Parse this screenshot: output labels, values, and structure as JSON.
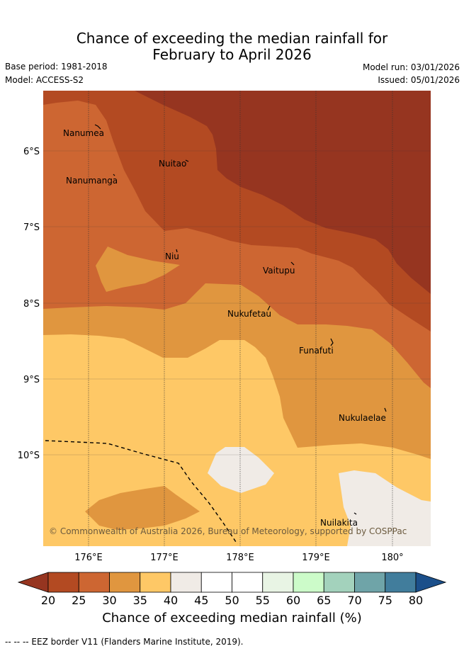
{
  "header": {
    "title_line1": "Chance of exceeding the median rainfall for",
    "title_line2": "February to April 2026",
    "base_period": "Base period: 1981-2018",
    "model": "Model: ACCESS-S2",
    "model_run": "Model run: 03/01/2026",
    "issued": "Issued: 05/01/2026"
  },
  "map": {
    "lon_labels": [
      "176°E",
      "177°E",
      "178°E",
      "179°E",
      "180°"
    ],
    "lat_labels": [
      "6°S",
      "7°S",
      "8°S",
      "9°S",
      "10°S"
    ],
    "islands": [
      {
        "name": "Nanumea"
      },
      {
        "name": "Nuitao"
      },
      {
        "name": "Nanumanga"
      },
      {
        "name": "Niu"
      },
      {
        "name": "Vaitupu"
      },
      {
        "name": "Nukufetau"
      },
      {
        "name": "Funafuti"
      },
      {
        "name": "Nukulaelae"
      },
      {
        "name": "Nuilakita"
      }
    ],
    "copyright": "© Commonwealth of Australia 2026, Bureau of Meteorology, supported by COSPPac"
  },
  "colorbar": {
    "labels": [
      "20",
      "25",
      "30",
      "35",
      "40",
      "45",
      "50",
      "55",
      "60",
      "65",
      "70",
      "75",
      "80"
    ],
    "colors": [
      "#b34a22",
      "#cd6632",
      "#e0963f",
      "#fec866",
      "#f0ebe6",
      "#ffffff",
      "#ffffff",
      "#e8f4e4",
      "#ccfbc9",
      "#a3d2bc",
      "#6fa4a8",
      "#417d9c",
      "#1b4f8a"
    ],
    "under_color": "#963520",
    "over_color": "#1b4f8a",
    "title": "Chance of exceeding median rainfall (%)"
  },
  "legend": {
    "eez_note": "-- -- -- EEZ border V11 (Flanders Marine Institute, 2019)."
  }
}
